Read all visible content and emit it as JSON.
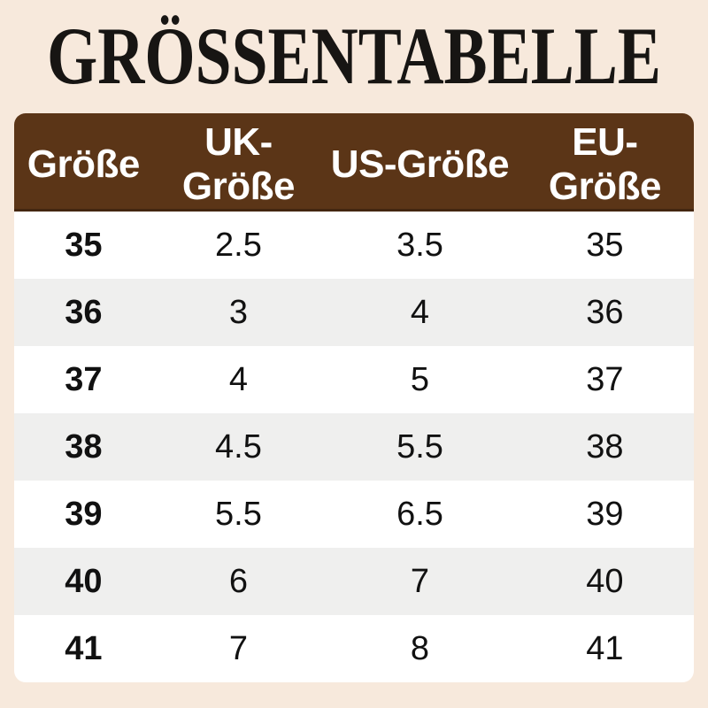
{
  "page": {
    "title": "GRÖSSENTABELLE",
    "background_color": "#f7e9dc"
  },
  "table": {
    "header_bg_color": "#5b3517",
    "header_text_color": "#ffffff",
    "row_color": "#ffffff",
    "row_alt_color": "#efefee",
    "columns": [
      "Größe",
      "UK-Größe",
      "US-Größe",
      "EU-Größe"
    ],
    "rows": [
      [
        "35",
        "2.5",
        "3.5",
        "35"
      ],
      [
        "36",
        "3",
        "4",
        "36"
      ],
      [
        "37",
        "4",
        "5",
        "37"
      ],
      [
        "38",
        "4.5",
        "5.5",
        "38"
      ],
      [
        "39",
        "5.5",
        "6.5",
        "39"
      ],
      [
        "40",
        "6",
        "7",
        "40"
      ],
      [
        "41",
        "7",
        "8",
        "41"
      ]
    ]
  },
  "chart_data": {
    "type": "table",
    "title": "GRÖSSENTABELLE",
    "columns": [
      "Größe",
      "UK-Größe",
      "US-Größe",
      "EU-Größe"
    ],
    "rows": [
      [
        "35",
        "2.5",
        "3.5",
        "35"
      ],
      [
        "36",
        "3",
        "4",
        "36"
      ],
      [
        "37",
        "4",
        "5",
        "37"
      ],
      [
        "38",
        "4.5",
        "5.5",
        "38"
      ],
      [
        "39",
        "5.5",
        "6.5",
        "39"
      ],
      [
        "40",
        "6",
        "7",
        "40"
      ],
      [
        "41",
        "7",
        "8",
        "41"
      ]
    ]
  }
}
